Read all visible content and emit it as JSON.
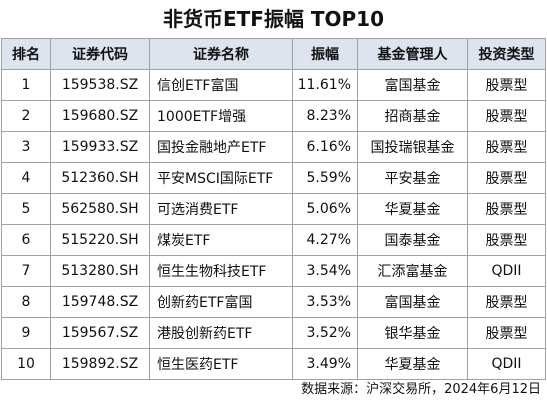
{
  "header": {
    "title": "非货币ETF振幅 TOP10"
  },
  "table": {
    "columns": [
      "排名",
      "证券代码",
      "证券名称",
      "振幅",
      "基金管理人",
      "投资类型"
    ],
    "rows": [
      [
        "1",
        "159538.SZ",
        "信创ETF富国",
        "11.61%",
        "富国基金",
        "股票型"
      ],
      [
        "2",
        "159680.SZ",
        "1000ETF增强",
        "8.23%",
        "招商基金",
        "股票型"
      ],
      [
        "3",
        "159933.SZ",
        "国投金融地产ETF",
        "6.16%",
        "国投瑞银基金",
        "股票型"
      ],
      [
        "4",
        "512360.SH",
        "平安MSCI国际ETF",
        "5.59%",
        "平安基金",
        "股票型"
      ],
      [
        "5",
        "562580.SH",
        "可选消费ETF",
        "5.06%",
        "华夏基金",
        "股票型"
      ],
      [
        "6",
        "515220.SH",
        "煤炭ETF",
        "4.27%",
        "国泰基金",
        "股票型"
      ],
      [
        "7",
        "513280.SH",
        "恒生生物科技ETF",
        "3.54%",
        "汇添富基金",
        "QDII"
      ],
      [
        "8",
        "159748.SZ",
        "创新药ETF富国",
        "3.53%",
        "富国基金",
        "股票型"
      ],
      [
        "9",
        "159567.SZ",
        "港股创新药ETF",
        "3.52%",
        "银华基金",
        "股票型"
      ],
      [
        "10",
        "159892.SZ",
        "恒生医药ETF",
        "3.49%",
        "华夏基金",
        "QDII"
      ]
    ]
  },
  "footer": {
    "source": "数据来源：沪深交易所，2024年6月12日"
  }
}
